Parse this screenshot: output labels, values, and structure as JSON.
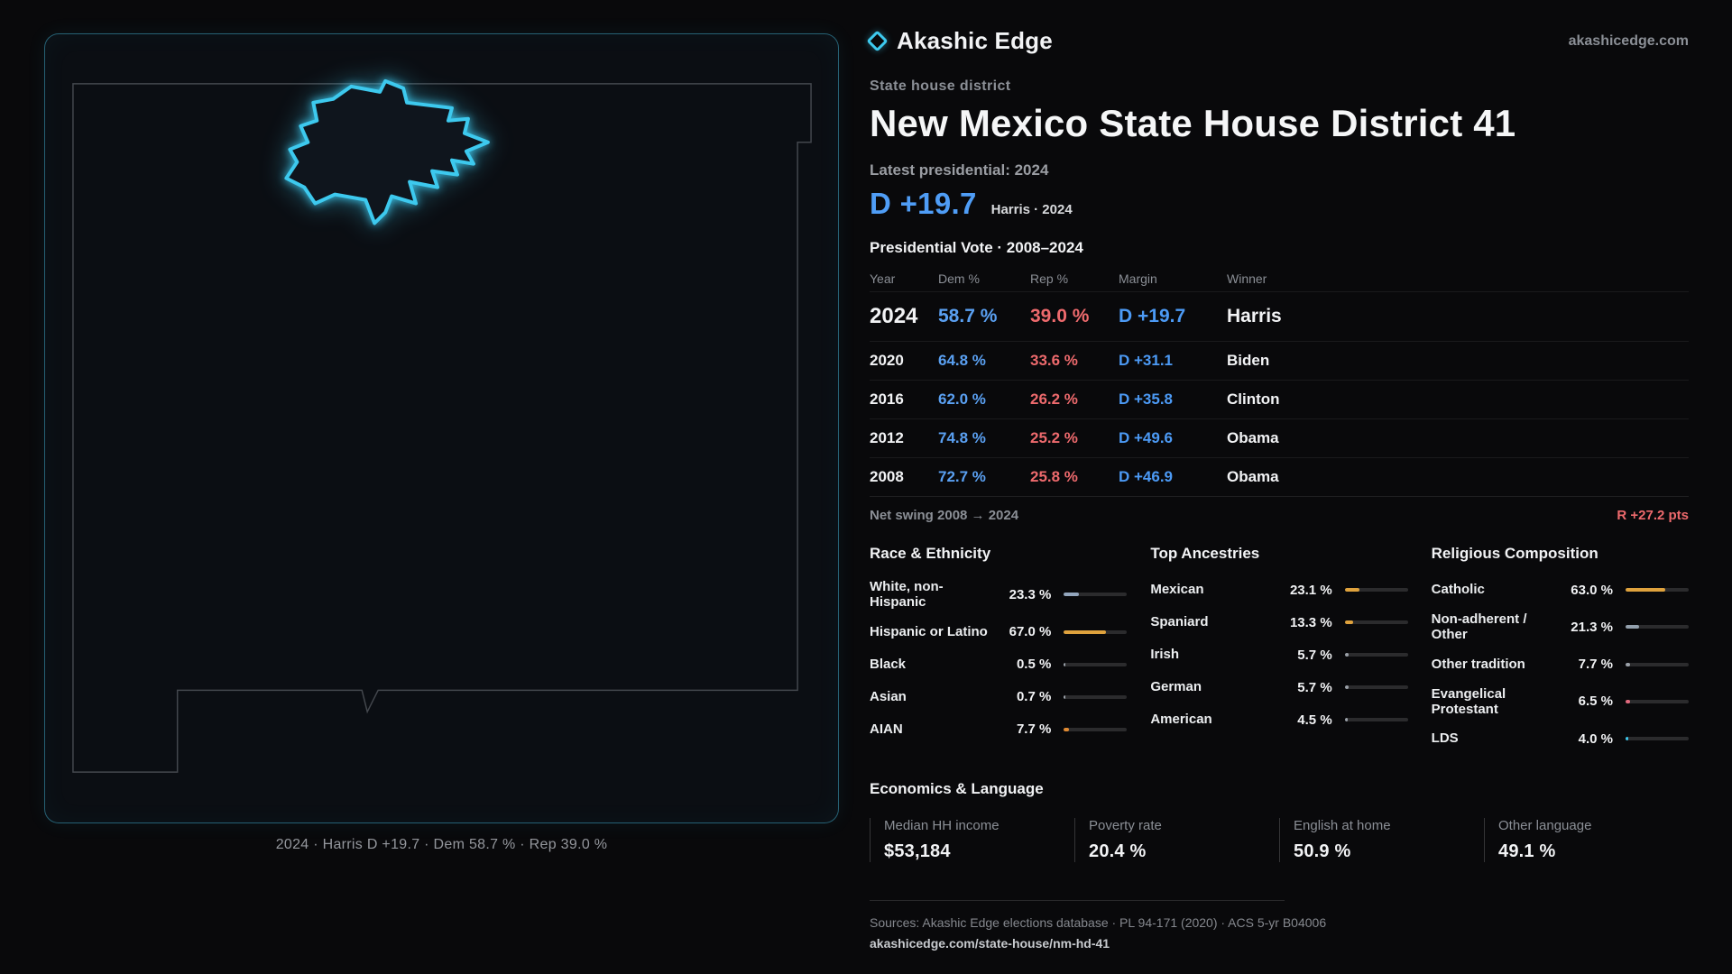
{
  "brand": {
    "name": "Akashic Edge",
    "site": "akashicedge.com",
    "accent": "#3dc9ee"
  },
  "map": {
    "caption": "2024 · Harris D +19.7 · Dem 58.7 % · Rep 39.0 %"
  },
  "header": {
    "kicker": "State house district",
    "title": "New Mexico State House District 41"
  },
  "latest": {
    "label": "Latest presidential: 2024",
    "margin": "D +19.7",
    "detail": "Harris · 2024"
  },
  "votes": {
    "title": "Presidential Vote · 2008–2024",
    "headers": [
      "Year",
      "Dem %",
      "Rep %",
      "Margin",
      "Winner"
    ],
    "rows": [
      {
        "year": "2024",
        "dem": "58.7 %",
        "rep": "39.0 %",
        "margin": "D +19.7",
        "winner": "Harris"
      },
      {
        "year": "2020",
        "dem": "64.8 %",
        "rep": "33.6 %",
        "margin": "D +31.1",
        "winner": "Biden"
      },
      {
        "year": "2016",
        "dem": "62.0 %",
        "rep": "26.2 %",
        "margin": "D +35.8",
        "winner": "Clinton"
      },
      {
        "year": "2012",
        "dem": "74.8 %",
        "rep": "25.2 %",
        "margin": "D +49.6",
        "winner": "Obama"
      },
      {
        "year": "2008",
        "dem": "72.7 %",
        "rep": "25.8 %",
        "margin": "D +46.9",
        "winner": "Obama"
      }
    ],
    "swing_label": "Net swing 2008 → 2024",
    "swing_value": "R +27.2 pts"
  },
  "demographics": {
    "race": {
      "title": "Race & Ethnicity",
      "rows": [
        {
          "label": "White, non-Hispanic",
          "value": "23.3 %",
          "pct": 23.3,
          "color": "#93a6bd"
        },
        {
          "label": "Hispanic or Latino",
          "value": "67.0 %",
          "pct": 67.0,
          "color": "#dfa23d"
        },
        {
          "label": "Black",
          "value": "0.5 %",
          "pct": 0.5,
          "color": "#9aa0a8"
        },
        {
          "label": "Asian",
          "value": "0.7 %",
          "pct": 0.7,
          "color": "#9aa0a8"
        },
        {
          "label": "AIAN",
          "value": "7.7 %",
          "pct": 7.7,
          "color": "#e08a32"
        }
      ]
    },
    "ancestries": {
      "title": "Top Ancestries",
      "rows": [
        {
          "label": "Mexican",
          "value": "23.1 %",
          "pct": 23.1,
          "color": "#dfa23d"
        },
        {
          "label": "Spaniard",
          "value": "13.3 %",
          "pct": 13.3,
          "color": "#dfa23d"
        },
        {
          "label": "Irish",
          "value": "5.7 %",
          "pct": 5.7,
          "color": "#9aa0a8"
        },
        {
          "label": "German",
          "value": "5.7 %",
          "pct": 5.7,
          "color": "#9aa0a8"
        },
        {
          "label": "American",
          "value": "4.5 %",
          "pct": 4.5,
          "color": "#9aa0a8"
        }
      ]
    },
    "religion": {
      "title": "Religious Composition",
      "rows": [
        {
          "label": "Catholic",
          "value": "63.0 %",
          "pct": 63.0,
          "color": "#dfa23d"
        },
        {
          "label": "Non-adherent / Other",
          "value": "21.3 %",
          "pct": 21.3,
          "color": "#93a0ad"
        },
        {
          "label": "Other tradition",
          "value": "7.7 %",
          "pct": 7.7,
          "color": "#9aa0a8"
        },
        {
          "label": "Evangelical Protestant",
          "value": "6.5 %",
          "pct": 6.5,
          "color": "#e2697e"
        },
        {
          "label": "LDS",
          "value": "4.0 %",
          "pct": 4.0,
          "color": "#3dc9ee"
        }
      ]
    }
  },
  "economics": {
    "title": "Economics & Language",
    "stats": [
      {
        "label": "Median HH income",
        "value": "$53,184"
      },
      {
        "label": "Poverty rate",
        "value": "20.4 %"
      },
      {
        "label": "English at home",
        "value": "50.9 %"
      },
      {
        "label": "Other language",
        "value": "49.1 %"
      }
    ]
  },
  "footer": {
    "sources": "Sources: Akashic Edge elections database · PL 94-171 (2020) · ACS 5-yr B04006",
    "permalink": "akashicedge.com/state-house/nm-hd-41"
  },
  "chart_data": [
    {
      "type": "table",
      "title": "Presidential Vote · 2008–2024",
      "columns": [
        "Year",
        "Dem %",
        "Rep %",
        "Margin",
        "Winner"
      ],
      "rows": [
        [
          "2024",
          58.7,
          39.0,
          "D +19.7",
          "Harris"
        ],
        [
          "2020",
          64.8,
          33.6,
          "D +31.1",
          "Biden"
        ],
        [
          "2016",
          62.0,
          26.2,
          "D +35.8",
          "Clinton"
        ],
        [
          "2012",
          74.8,
          25.2,
          "D +49.6",
          "Obama"
        ],
        [
          "2008",
          72.7,
          25.8,
          "D +46.9",
          "Obama"
        ]
      ],
      "annotations": [
        "Net swing 2008 → 2024: R +27.2 pts",
        "Latest presidential: 2024 — D +19.7 (Harris)"
      ]
    },
    {
      "type": "bar",
      "title": "Race & Ethnicity",
      "categories": [
        "White, non-Hispanic",
        "Hispanic or Latino",
        "Black",
        "Asian",
        "AIAN"
      ],
      "values": [
        23.3,
        67.0,
        0.5,
        0.7,
        7.7
      ],
      "xlabel": "",
      "ylabel": "%",
      "ylim": [
        0,
        100
      ]
    },
    {
      "type": "bar",
      "title": "Top Ancestries",
      "categories": [
        "Mexican",
        "Spaniard",
        "Irish",
        "German",
        "American"
      ],
      "values": [
        23.1,
        13.3,
        5.7,
        5.7,
        4.5
      ],
      "xlabel": "",
      "ylabel": "%",
      "ylim": [
        0,
        100
      ]
    },
    {
      "type": "bar",
      "title": "Religious Composition",
      "categories": [
        "Catholic",
        "Non-adherent / Other",
        "Other tradition",
        "Evangelical Protestant",
        "LDS"
      ],
      "values": [
        63.0,
        21.3,
        7.7,
        6.5,
        4.0
      ],
      "xlabel": "",
      "ylabel": "%",
      "ylim": [
        0,
        100
      ]
    },
    {
      "type": "bar",
      "title": "Economics & Language",
      "categories": [
        "Median HH income ($)",
        "Poverty rate (%)",
        "English at home (%)",
        "Other language (%)"
      ],
      "values": [
        53184,
        20.4,
        50.9,
        49.1
      ]
    }
  ]
}
